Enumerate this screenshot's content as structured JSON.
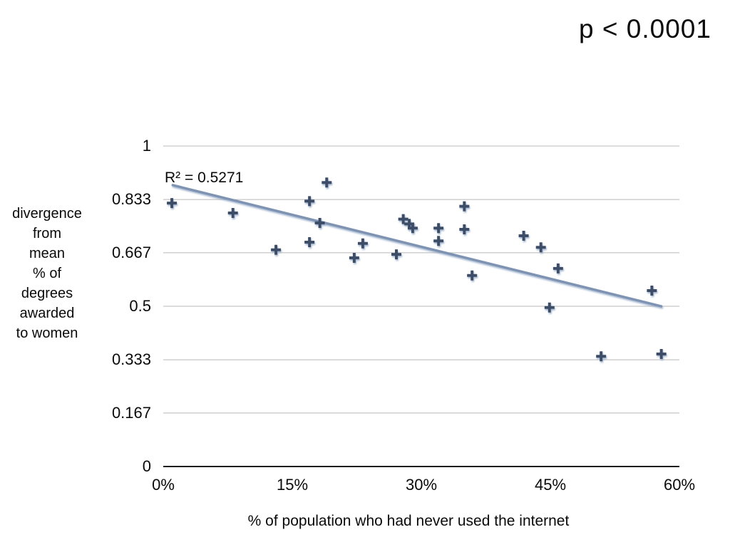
{
  "annotations": {
    "p_value": "p < 0.0001",
    "r_squared": "R² = 0.5271"
  },
  "colors": {
    "marker": "#3E4E68",
    "marker_shadow": "#93A9C7",
    "trendline": "#7E93B2",
    "gridline": "#B8B8B8",
    "axis_line": "#1C1C1C",
    "text": "#0A0A0A",
    "background": "#FFFFFF"
  },
  "chart_data": {
    "type": "scatter",
    "title": "",
    "xlabel": "% of population who had never used the internet",
    "ylabel": "divergence from mean % of degrees awarded to women",
    "ylabel_lines": "divergence\nfrom\nmean\n% of\ndegrees\nawarded\nto women",
    "xlim": [
      0,
      60
    ],
    "ylim": [
      0,
      1
    ],
    "grid": "horizontal",
    "legend": "none",
    "marker": "plus",
    "x_ticks": [
      {
        "value": 0,
        "label": "0%"
      },
      {
        "value": 15,
        "label": "15%"
      },
      {
        "value": 30,
        "label": "30%"
      },
      {
        "value": 45,
        "label": "45%"
      },
      {
        "value": 60,
        "label": "60%"
      }
    ],
    "y_ticks": [
      {
        "value": 0,
        "label": "0"
      },
      {
        "value": 0.167,
        "label": "0.167"
      },
      {
        "value": 0.333,
        "label": "0.333"
      },
      {
        "value": 0.5,
        "label": "0.5"
      },
      {
        "value": 0.667,
        "label": "0.667"
      },
      {
        "value": 0.833,
        "label": "0.833"
      },
      {
        "value": 1,
        "label": "1"
      }
    ],
    "points": [
      {
        "x": 1.0,
        "y": 0.822
      },
      {
        "x": 8.1,
        "y": 0.791
      },
      {
        "x": 13.1,
        "y": 0.676
      },
      {
        "x": 17.0,
        "y": 0.828
      },
      {
        "x": 17.0,
        "y": 0.7
      },
      {
        "x": 18.2,
        "y": 0.76
      },
      {
        "x": 19.0,
        "y": 0.886
      },
      {
        "x": 22.2,
        "y": 0.651
      },
      {
        "x": 23.2,
        "y": 0.696
      },
      {
        "x": 27.1,
        "y": 0.662
      },
      {
        "x": 27.9,
        "y": 0.772
      },
      {
        "x": 28.6,
        "y": 0.757
      },
      {
        "x": 29.0,
        "y": 0.744
      },
      {
        "x": 32.0,
        "y": 0.744
      },
      {
        "x": 32.0,
        "y": 0.704
      },
      {
        "x": 35.0,
        "y": 0.812
      },
      {
        "x": 35.0,
        "y": 0.74
      },
      {
        "x": 35.9,
        "y": 0.596
      },
      {
        "x": 41.9,
        "y": 0.72
      },
      {
        "x": 43.9,
        "y": 0.684
      },
      {
        "x": 44.9,
        "y": 0.496
      },
      {
        "x": 45.9,
        "y": 0.618
      },
      {
        "x": 50.9,
        "y": 0.344
      },
      {
        "x": 56.8,
        "y": 0.549
      },
      {
        "x": 57.9,
        "y": 0.351
      }
    ],
    "trendline": {
      "x1": 1.1,
      "y1": 0.878,
      "x2": 57.9,
      "y2": 0.5,
      "r_squared_label": "R² = 0.5271"
    }
  }
}
